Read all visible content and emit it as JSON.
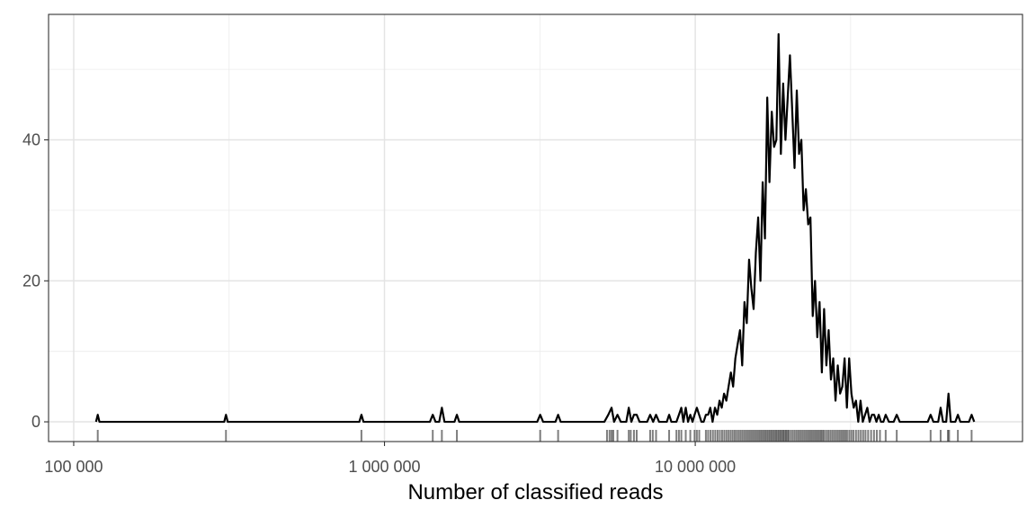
{
  "chart_data": {
    "type": "line",
    "title": "",
    "xlabel": "Number of classified reads",
    "ylabel": "",
    "x_scale": "log10",
    "xlim": [
      83000,
      113000000
    ],
    "ylim": [
      -2.8,
      57.8
    ],
    "grid": true,
    "x_ticks": [
      100000,
      1000000,
      10000000
    ],
    "x_tick_labels": [
      "100 000",
      "1 000 000",
      "10 000 000"
    ],
    "y_ticks": [
      0,
      20,
      40
    ],
    "y_tick_labels": [
      "0",
      "20",
      "40"
    ],
    "line_color": "#000000",
    "rug_color": "#000000",
    "series": [
      {
        "name": "",
        "points": [
          [
            118000,
            0
          ],
          [
            119500,
            1
          ],
          [
            121000,
            0
          ],
          [
            305000,
            0
          ],
          [
            309000,
            1
          ],
          [
            313000,
            0
          ],
          [
            830000,
            0
          ],
          [
            843000,
            1
          ],
          [
            856000,
            0
          ],
          [
            1400000,
            0
          ],
          [
            1430000,
            1
          ],
          [
            1460000,
            0
          ],
          [
            1500000,
            0
          ],
          [
            1530000,
            2
          ],
          [
            1560000,
            0
          ],
          [
            1680000,
            0
          ],
          [
            1710000,
            1
          ],
          [
            1740000,
            0
          ],
          [
            3100000,
            0
          ],
          [
            3170000,
            1
          ],
          [
            3240000,
            0
          ],
          [
            3550000,
            0
          ],
          [
            3620000,
            1
          ],
          [
            3690000,
            0
          ],
          [
            5100000,
            0
          ],
          [
            5250000,
            1
          ],
          [
            5380000,
            2
          ],
          [
            5480000,
            0
          ],
          [
            5620000,
            1
          ],
          [
            5760000,
            0
          ],
          [
            6000000,
            0
          ],
          [
            6110000,
            2
          ],
          [
            6230000,
            0
          ],
          [
            6350000,
            1
          ],
          [
            6480000,
            1
          ],
          [
            6620000,
            0
          ],
          [
            7000000,
            0
          ],
          [
            7160000,
            1
          ],
          [
            7320000,
            0
          ],
          [
            7480000,
            1
          ],
          [
            7650000,
            0
          ],
          [
            8100000,
            0
          ],
          [
            8240000,
            1
          ],
          [
            8380000,
            0
          ],
          [
            8700000,
            0
          ],
          [
            8860000,
            1
          ],
          [
            9020000,
            2
          ],
          [
            9160000,
            0
          ],
          [
            9320000,
            2
          ],
          [
            9480000,
            0
          ],
          [
            9640000,
            1
          ],
          [
            9800000,
            0
          ],
          [
            9950000,
            1
          ],
          [
            10120000,
            2
          ],
          [
            10290000,
            1
          ],
          [
            10470000,
            0
          ],
          [
            10640000,
            0
          ],
          [
            10820000,
            1
          ],
          [
            11000000,
            1
          ],
          [
            11180000,
            2
          ],
          [
            11370000,
            0
          ],
          [
            11570000,
            2
          ],
          [
            11770000,
            1
          ],
          [
            11970000,
            3
          ],
          [
            12170000,
            2
          ],
          [
            12380000,
            4
          ],
          [
            12590000,
            3
          ],
          [
            12800000,
            5
          ],
          [
            13020000,
            7
          ],
          [
            13240000,
            5
          ],
          [
            13460000,
            9
          ],
          [
            13690000,
            11
          ],
          [
            13930000,
            13
          ],
          [
            14160000,
            8
          ],
          [
            14400000,
            17
          ],
          [
            14650000,
            14
          ],
          [
            14900000,
            23
          ],
          [
            15150000,
            19
          ],
          [
            15410000,
            16
          ],
          [
            15670000,
            24
          ],
          [
            15940000,
            29
          ],
          [
            16210000,
            20
          ],
          [
            16480000,
            34
          ],
          [
            16760000,
            26
          ],
          [
            17050000,
            46
          ],
          [
            17330000,
            34
          ],
          [
            17630000,
            44
          ],
          [
            17930000,
            39
          ],
          [
            18240000,
            40
          ],
          [
            18540000,
            55
          ],
          [
            18860000,
            38
          ],
          [
            19180000,
            48
          ],
          [
            19510000,
            40
          ],
          [
            19840000,
            46
          ],
          [
            20170000,
            52
          ],
          [
            20520000,
            44
          ],
          [
            20870000,
            36
          ],
          [
            21220000,
            47
          ],
          [
            21580000,
            38
          ],
          [
            21950000,
            40
          ],
          [
            22320000,
            30
          ],
          [
            22700000,
            33
          ],
          [
            23090000,
            28
          ],
          [
            23480000,
            29
          ],
          [
            23880000,
            15
          ],
          [
            24290000,
            20
          ],
          [
            24700000,
            12
          ],
          [
            25120000,
            17
          ],
          [
            25550000,
            7
          ],
          [
            25980000,
            16
          ],
          [
            26420000,
            8
          ],
          [
            26870000,
            13
          ],
          [
            27330000,
            6
          ],
          [
            27800000,
            9
          ],
          [
            28270000,
            3
          ],
          [
            28750000,
            8
          ],
          [
            29240000,
            4
          ],
          [
            29740000,
            5
          ],
          [
            30240000,
            9
          ],
          [
            30760000,
            2
          ],
          [
            31280000,
            9
          ],
          [
            31810000,
            4
          ],
          [
            32350000,
            2
          ],
          [
            32900000,
            3
          ],
          [
            33460000,
            0
          ],
          [
            34030000,
            3
          ],
          [
            34600000,
            0
          ],
          [
            35190000,
            1
          ],
          [
            35790000,
            2
          ],
          [
            36400000,
            0
          ],
          [
            37020000,
            1
          ],
          [
            37650000,
            1
          ],
          [
            38290000,
            0
          ],
          [
            38940000,
            1
          ],
          [
            39600000,
            0
          ],
          [
            40300000,
            0
          ],
          [
            41000000,
            1
          ],
          [
            42000000,
            0
          ],
          [
            43500000,
            0
          ],
          [
            44500000,
            1
          ],
          [
            45500000,
            0
          ],
          [
            56000000,
            0
          ],
          [
            57200000,
            1
          ],
          [
            58400000,
            0
          ],
          [
            60500000,
            0
          ],
          [
            61600000,
            2
          ],
          [
            62700000,
            0
          ],
          [
            64200000,
            0
          ],
          [
            65300000,
            4
          ],
          [
            66400000,
            0
          ],
          [
            68700000,
            0
          ],
          [
            70000000,
            1
          ],
          [
            71300000,
            0
          ],
          [
            76000000,
            0
          ],
          [
            77500000,
            1
          ],
          [
            79000000,
            0
          ]
        ]
      }
    ],
    "rug": [
      119500,
      309000,
      843000,
      1430000,
      1530000,
      1710000,
      3170000,
      3620000,
      5200000,
      5300000,
      5380000,
      5450000,
      5620000,
      6110000,
      6200000,
      6350000,
      6480000,
      7160000,
      7300000,
      7480000,
      8240000,
      8700000,
      8860000,
      9020000,
      9320000,
      9640000,
      9950000,
      10120000,
      10300000,
      10820000,
      11000000,
      11200000,
      11400000,
      11600000,
      11800000,
      12000000,
      12200000,
      12400000,
      12600000,
      12800000,
      13000000,
      13200000,
      13400000,
      13600000,
      13800000,
      14000000,
      14200000,
      14400000,
      14600000,
      14800000,
      15000000,
      15200000,
      15400000,
      15600000,
      15800000,
      16000000,
      16200000,
      16400000,
      16600000,
      16800000,
      17000000,
      17200000,
      17400000,
      17600000,
      17800000,
      18000000,
      18200000,
      18400000,
      18600000,
      18800000,
      19000000,
      19200000,
      19400000,
      19600000,
      19800000,
      20000000,
      20300000,
      20600000,
      20900000,
      21200000,
      21500000,
      21800000,
      22100000,
      22400000,
      22700000,
      23000000,
      23300000,
      23600000,
      23900000,
      24200000,
      24500000,
      24800000,
      25100000,
      25400000,
      25700000,
      26000000,
      26400000,
      26800000,
      27200000,
      27600000,
      28000000,
      28400000,
      28800000,
      29200000,
      29600000,
      30000000,
      30400000,
      30800000,
      31300000,
      31800000,
      32300000,
      32900000,
      33500000,
      34100000,
      34700000,
      35300000,
      36000000,
      36800000,
      37600000,
      38400000,
      39300000,
      41000000,
      44500000,
      57200000,
      61600000,
      65000000,
      65600000,
      70000000,
      77500000
    ]
  }
}
